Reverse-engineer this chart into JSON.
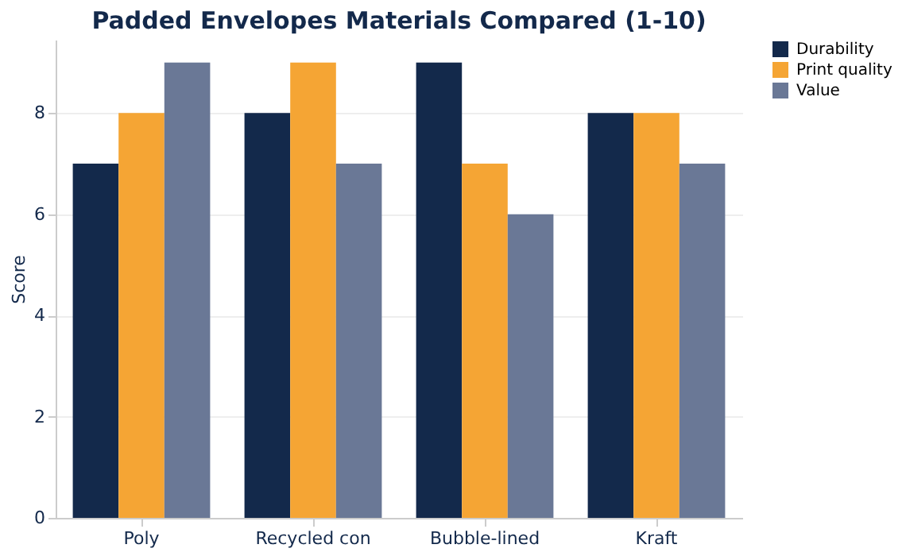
{
  "chart_data": {
    "type": "bar",
    "title": "Padded Envelopes Materials Compared (1-10)",
    "ylabel": "Score",
    "categories": [
      "Poly",
      "Recycled con",
      "Bubble-lined",
      "Kraft"
    ],
    "series": [
      {
        "name": "Durability",
        "color": "#13294b",
        "values": [
          7,
          8,
          9,
          8
        ]
      },
      {
        "name": "Print quality",
        "color": "#f5a534",
        "values": [
          8,
          9,
          7,
          8
        ]
      },
      {
        "name": "Value",
        "color": "#6a7896",
        "values": [
          9,
          7,
          6,
          7
        ]
      }
    ],
    "ylim": [
      0,
      9.45
    ],
    "yticks": [
      0,
      2,
      4,
      6,
      8
    ],
    "grid": "y",
    "legend": "top right"
  }
}
